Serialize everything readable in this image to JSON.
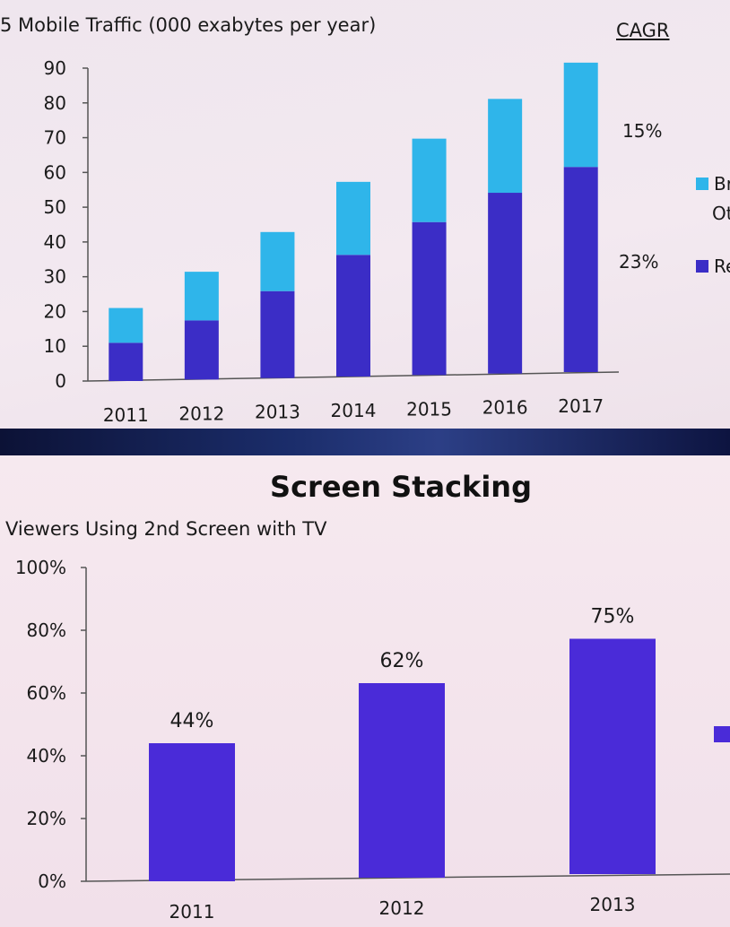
{
  "top_chart": {
    "title": "5 Mobile Traffic (000 exabytes per year)",
    "cagr_heading": "CAGR",
    "cagr_values": [
      {
        "label": "15%"
      },
      {
        "label": "23%"
      }
    ],
    "legend": [
      {
        "label_line1": "Br",
        "label_line2": "Ot",
        "color": "#2fb5ea"
      },
      {
        "label_line1": "Re",
        "label_line2": "",
        "color": "#3b2dc6"
      }
    ]
  },
  "bottom_chart": {
    "heading": "Screen Stacking",
    "title": "Viewers Using 2nd Screen with TV",
    "legend_color": "#4a2bd8"
  },
  "chart_data": [
    {
      "type": "bar",
      "stacked": true,
      "title": "5 Mobile Traffic (000 exabytes per year)",
      "categories": [
        "2011",
        "2012",
        "2013",
        "2014",
        "2015",
        "2016",
        "2017"
      ],
      "series": [
        {
          "name": "Re",
          "color": "#3b2dc6",
          "values": [
            11,
            17,
            25,
            35,
            44,
            52,
            59
          ]
        },
        {
          "name": "Br Ot",
          "color": "#2fb5ea",
          "values": [
            10,
            14,
            17,
            21,
            24,
            27,
            30
          ]
        }
      ],
      "ylim": [
        0,
        90
      ],
      "yticks": [
        "0",
        "10",
        "20",
        "30",
        "40",
        "50",
        "60",
        "70",
        "80",
        "90"
      ],
      "grid": false
    },
    {
      "type": "bar",
      "title": "Viewers Using 2nd Screen with TV",
      "categories": [
        "2011",
        "2012",
        "2013"
      ],
      "values": [
        44,
        62,
        75
      ],
      "data_labels": [
        "44%",
        "62%",
        "75%"
      ],
      "ylim": [
        0,
        100
      ],
      "yticks": [
        "0%",
        "20%",
        "40%",
        "60%",
        "80%",
        "100%"
      ],
      "color": "#4a2bd8",
      "grid": false
    }
  ]
}
